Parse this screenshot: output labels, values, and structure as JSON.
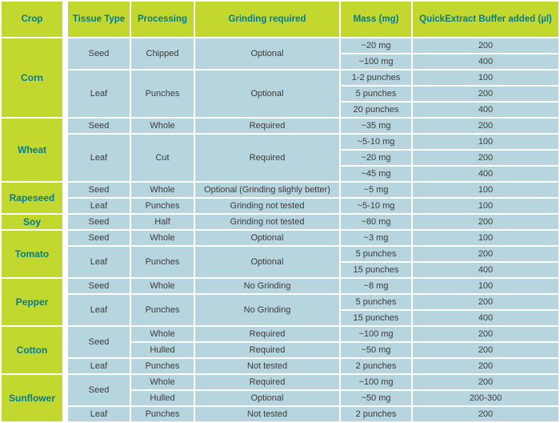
{
  "colors": {
    "header_green": "#c3d82f",
    "teal_text": "#007d96",
    "cell_blue": "#b7d5de",
    "body_text": "#3b3b3b",
    "border_white": "#ffffff"
  },
  "table": {
    "headers": [
      "Crop",
      "Tissue Type",
      "Processing",
      "Grinding required",
      "Mass (mg)",
      "QuickExtract Buffer added (µl)"
    ],
    "rows": [
      [
        {
          "text": "Corn",
          "span": 5,
          "kind": "crop"
        },
        {
          "text": "Seed",
          "span": 2
        },
        {
          "text": "Chipped",
          "span": 2
        },
        {
          "text": "Optional",
          "span": 2
        },
        {
          "text": "~20 mg"
        },
        {
          "text": "200"
        }
      ],
      [
        {
          "text": "~100 mg"
        },
        {
          "text": "400"
        }
      ],
      [
        {
          "text": "Leaf",
          "span": 3
        },
        {
          "text": "Punches",
          "span": 3
        },
        {
          "text": "Optional",
          "span": 3
        },
        {
          "text": "1-2 punches"
        },
        {
          "text": "100"
        }
      ],
      [
        {
          "text": "5 punches"
        },
        {
          "text": "200"
        }
      ],
      [
        {
          "text": "20 punches"
        },
        {
          "text": "400"
        }
      ],
      [
        {
          "text": "Wheat",
          "span": 4,
          "kind": "crop"
        },
        {
          "text": "Seed"
        },
        {
          "text": "Whole"
        },
        {
          "text": "Required"
        },
        {
          "text": "~35 mg"
        },
        {
          "text": "200"
        }
      ],
      [
        {
          "text": "Leaf",
          "span": 3
        },
        {
          "text": "Cut",
          "span": 3
        },
        {
          "text": "Required",
          "span": 3
        },
        {
          "text": "~5-10 mg"
        },
        {
          "text": "100"
        }
      ],
      [
        {
          "text": "~20 mg"
        },
        {
          "text": "200"
        }
      ],
      [
        {
          "text": "~45 mg"
        },
        {
          "text": "400"
        }
      ],
      [
        {
          "text": "Rapeseed",
          "span": 2,
          "kind": "crop"
        },
        {
          "text": "Seed"
        },
        {
          "text": "Whole"
        },
        {
          "text": "Optional (Grinding slighly better)"
        },
        {
          "text": "~5 mg"
        },
        {
          "text": "100"
        }
      ],
      [
        {
          "text": "Leaf"
        },
        {
          "text": "Punches"
        },
        {
          "text": "Grinding not tested"
        },
        {
          "text": "~5-10 mg"
        },
        {
          "text": "100"
        }
      ],
      [
        {
          "text": "Soy",
          "kind": "crop"
        },
        {
          "text": "Seed"
        },
        {
          "text": "Half"
        },
        {
          "text": "Grinding not tested"
        },
        {
          "text": "~80 mg"
        },
        {
          "text": "200"
        }
      ],
      [
        {
          "text": "Tomato",
          "span": 3,
          "kind": "crop"
        },
        {
          "text": "Seed"
        },
        {
          "text": "Whole"
        },
        {
          "text": "Optional"
        },
        {
          "text": "~3 mg"
        },
        {
          "text": "100"
        }
      ],
      [
        {
          "text": "Leaf",
          "span": 2
        },
        {
          "text": "Punches",
          "span": 2
        },
        {
          "text": "Optional",
          "span": 2
        },
        {
          "text": "5 punches"
        },
        {
          "text": "200"
        }
      ],
      [
        {
          "text": "15 punches"
        },
        {
          "text": "400"
        }
      ],
      [
        {
          "text": "Pepper",
          "span": 3,
          "kind": "crop"
        },
        {
          "text": "Seed"
        },
        {
          "text": "Whole"
        },
        {
          "text": "No Grinding"
        },
        {
          "text": "~8 mg"
        },
        {
          "text": "100"
        }
      ],
      [
        {
          "text": "Leaf",
          "span": 2
        },
        {
          "text": "Punches",
          "span": 2
        },
        {
          "text": "No Grinding",
          "span": 2
        },
        {
          "text": "5 punches"
        },
        {
          "text": "200"
        }
      ],
      [
        {
          "text": "15 punches"
        },
        {
          "text": "400"
        }
      ],
      [
        {
          "text": "Cotton",
          "span": 3,
          "kind": "crop"
        },
        {
          "text": "Seed",
          "span": 2
        },
        {
          "text": "Whole"
        },
        {
          "text": "Required"
        },
        {
          "text": "~100 mg"
        },
        {
          "text": "200"
        }
      ],
      [
        {
          "text": "Hulled"
        },
        {
          "text": "Required"
        },
        {
          "text": "~50 mg"
        },
        {
          "text": "200"
        }
      ],
      [
        {
          "text": "Leaf"
        },
        {
          "text": "Punches"
        },
        {
          "text": "Not tested"
        },
        {
          "text": "2 punches"
        },
        {
          "text": "200"
        }
      ],
      [
        {
          "text": "Sunflower",
          "span": 3,
          "kind": "crop"
        },
        {
          "text": "Seed",
          "span": 2
        },
        {
          "text": "Whole"
        },
        {
          "text": "Required"
        },
        {
          "text": "~100 mg"
        },
        {
          "text": "200"
        }
      ],
      [
        {
          "text": "Hulled"
        },
        {
          "text": "Optional"
        },
        {
          "text": "~50 mg"
        },
        {
          "text": "200-300"
        }
      ],
      [
        {
          "text": "Leaf"
        },
        {
          "text": "Punches"
        },
        {
          "text": "Not tested"
        },
        {
          "text": "2 punches"
        },
        {
          "text": "200"
        }
      ]
    ]
  }
}
